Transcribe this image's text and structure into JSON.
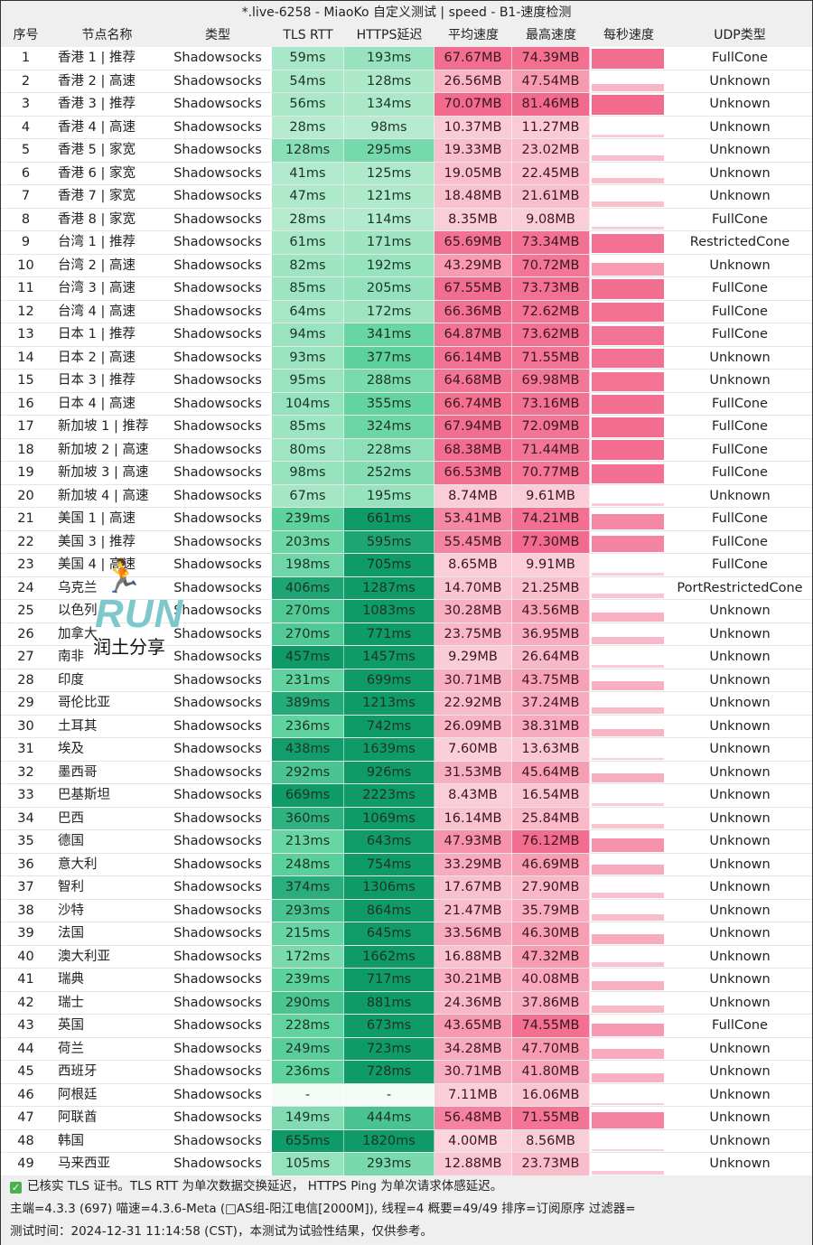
{
  "window": {
    "title": "*.live-6258 - MiaoKo 自定义测试 | speed - B1-速度检测"
  },
  "table": {
    "columns": [
      "序号",
      "节点名称",
      "类型",
      "TLS RTT",
      "HTTPS延迟",
      "平均速度",
      "最高速度",
      "每秒速度",
      "UDP类型"
    ],
    "rows": [
      {
        "idx": "1",
        "name": "香港 1 | 推荐",
        "type": "Shadowsocks",
        "tls": "59ms",
        "https": "193ms",
        "avg": "67.67MB",
        "max": "74.39MB",
        "udp": "FullCone"
      },
      {
        "idx": "2",
        "name": "香港 2 | 高速",
        "type": "Shadowsocks",
        "tls": "54ms",
        "https": "128ms",
        "avg": "26.56MB",
        "max": "47.54MB",
        "udp": "Unknown"
      },
      {
        "idx": "3",
        "name": "香港 3 | 推荐",
        "type": "Shadowsocks",
        "tls": "56ms",
        "https": "134ms",
        "avg": "70.07MB",
        "max": "81.46MB",
        "udp": "Unknown"
      },
      {
        "idx": "4",
        "name": "香港 4 | 高速",
        "type": "Shadowsocks",
        "tls": "28ms",
        "https": "98ms",
        "avg": "10.37MB",
        "max": "11.27MB",
        "udp": "Unknown"
      },
      {
        "idx": "5",
        "name": "香港 5 | 家宽",
        "type": "Shadowsocks",
        "tls": "128ms",
        "https": "295ms",
        "avg": "19.33MB",
        "max": "23.02MB",
        "udp": "Unknown"
      },
      {
        "idx": "6",
        "name": "香港 6 | 家宽",
        "type": "Shadowsocks",
        "tls": "41ms",
        "https": "125ms",
        "avg": "19.05MB",
        "max": "22.45MB",
        "udp": "Unknown"
      },
      {
        "idx": "7",
        "name": "香港 7 | 家宽",
        "type": "Shadowsocks",
        "tls": "47ms",
        "https": "121ms",
        "avg": "18.48MB",
        "max": "21.61MB",
        "udp": "Unknown"
      },
      {
        "idx": "8",
        "name": "香港 8 | 家宽",
        "type": "Shadowsocks",
        "tls": "28ms",
        "https": "114ms",
        "avg": "8.35MB",
        "max": "9.08MB",
        "udp": "FullCone"
      },
      {
        "idx": "9",
        "name": "台湾 1 | 推荐",
        "type": "Shadowsocks",
        "tls": "61ms",
        "https": "171ms",
        "avg": "65.69MB",
        "max": "73.34MB",
        "udp": "RestrictedCone"
      },
      {
        "idx": "10",
        "name": "台湾 2 | 高速",
        "type": "Shadowsocks",
        "tls": "82ms",
        "https": "192ms",
        "avg": "43.29MB",
        "max": "70.72MB",
        "udp": "Unknown"
      },
      {
        "idx": "11",
        "name": "台湾 3 | 高速",
        "type": "Shadowsocks",
        "tls": "85ms",
        "https": "205ms",
        "avg": "67.55MB",
        "max": "73.73MB",
        "udp": "FullCone"
      },
      {
        "idx": "12",
        "name": "台湾 4 | 高速",
        "type": "Shadowsocks",
        "tls": "64ms",
        "https": "172ms",
        "avg": "66.36MB",
        "max": "72.62MB",
        "udp": "FullCone"
      },
      {
        "idx": "13",
        "name": "日本 1 | 推荐",
        "type": "Shadowsocks",
        "tls": "94ms",
        "https": "341ms",
        "avg": "64.87MB",
        "max": "73.62MB",
        "udp": "FullCone"
      },
      {
        "idx": "14",
        "name": "日本 2 | 高速",
        "type": "Shadowsocks",
        "tls": "93ms",
        "https": "377ms",
        "avg": "66.14MB",
        "max": "71.55MB",
        "udp": "Unknown"
      },
      {
        "idx": "15",
        "name": "日本 3 | 推荐",
        "type": "Shadowsocks",
        "tls": "95ms",
        "https": "288ms",
        "avg": "64.68MB",
        "max": "69.98MB",
        "udp": "Unknown"
      },
      {
        "idx": "16",
        "name": "日本 4 | 高速",
        "type": "Shadowsocks",
        "tls": "104ms",
        "https": "355ms",
        "avg": "66.74MB",
        "max": "73.16MB",
        "udp": "FullCone"
      },
      {
        "idx": "17",
        "name": "新加坡 1 | 推荐",
        "type": "Shadowsocks",
        "tls": "85ms",
        "https": "324ms",
        "avg": "67.94MB",
        "max": "72.09MB",
        "udp": "FullCone"
      },
      {
        "idx": "18",
        "name": "新加坡 2 | 高速",
        "type": "Shadowsocks",
        "tls": "80ms",
        "https": "228ms",
        "avg": "68.38MB",
        "max": "71.44MB",
        "udp": "FullCone"
      },
      {
        "idx": "19",
        "name": "新加坡 3 | 高速",
        "type": "Shadowsocks",
        "tls": "98ms",
        "https": "252ms",
        "avg": "66.53MB",
        "max": "70.77MB",
        "udp": "FullCone"
      },
      {
        "idx": "20",
        "name": "新加坡 4 | 高速",
        "type": "Shadowsocks",
        "tls": "67ms",
        "https": "195ms",
        "avg": "8.74MB",
        "max": "9.61MB",
        "udp": "Unknown"
      },
      {
        "idx": "21",
        "name": "美国 1 | 高速",
        "type": "Shadowsocks",
        "tls": "239ms",
        "https": "661ms",
        "avg": "53.41MB",
        "max": "74.21MB",
        "udp": "FullCone"
      },
      {
        "idx": "22",
        "name": "美国 3 | 推荐",
        "type": "Shadowsocks",
        "tls": "203ms",
        "https": "595ms",
        "avg": "55.45MB",
        "max": "77.30MB",
        "udp": "FullCone"
      },
      {
        "idx": "23",
        "name": "美国 4 | 高速",
        "type": "Shadowsocks",
        "tls": "198ms",
        "https": "705ms",
        "avg": "8.65MB",
        "max": "9.91MB",
        "udp": "FullCone"
      },
      {
        "idx": "24",
        "name": "乌克兰",
        "type": "Shadowsocks",
        "tls": "406ms",
        "https": "1287ms",
        "avg": "14.70MB",
        "max": "21.25MB",
        "udp": "PortRestrictedCone"
      },
      {
        "idx": "25",
        "name": "以色列",
        "type": "Shadowsocks",
        "tls": "270ms",
        "https": "1083ms",
        "avg": "30.28MB",
        "max": "43.56MB",
        "udp": "Unknown"
      },
      {
        "idx": "26",
        "name": "加拿大",
        "type": "Shadowsocks",
        "tls": "270ms",
        "https": "771ms",
        "avg": "23.75MB",
        "max": "36.95MB",
        "udp": "Unknown"
      },
      {
        "idx": "27",
        "name": "南非",
        "type": "Shadowsocks",
        "tls": "457ms",
        "https": "1457ms",
        "avg": "9.29MB",
        "max": "26.64MB",
        "udp": "Unknown"
      },
      {
        "idx": "28",
        "name": "印度",
        "type": "Shadowsocks",
        "tls": "231ms",
        "https": "699ms",
        "avg": "30.71MB",
        "max": "43.75MB",
        "udp": "Unknown"
      },
      {
        "idx": "29",
        "name": "哥伦比亚",
        "type": "Shadowsocks",
        "tls": "389ms",
        "https": "1213ms",
        "avg": "22.92MB",
        "max": "37.24MB",
        "udp": "Unknown"
      },
      {
        "idx": "30",
        "name": "土耳其",
        "type": "Shadowsocks",
        "tls": "236ms",
        "https": "742ms",
        "avg": "26.09MB",
        "max": "38.31MB",
        "udp": "Unknown"
      },
      {
        "idx": "31",
        "name": "埃及",
        "type": "Shadowsocks",
        "tls": "438ms",
        "https": "1639ms",
        "avg": "7.60MB",
        "max": "13.63MB",
        "udp": "Unknown"
      },
      {
        "idx": "32",
        "name": "墨西哥",
        "type": "Shadowsocks",
        "tls": "292ms",
        "https": "926ms",
        "avg": "31.53MB",
        "max": "45.64MB",
        "udp": "Unknown"
      },
      {
        "idx": "33",
        "name": "巴基斯坦",
        "type": "Shadowsocks",
        "tls": "669ms",
        "https": "2223ms",
        "avg": "8.43MB",
        "max": "16.54MB",
        "udp": "Unknown"
      },
      {
        "idx": "34",
        "name": "巴西",
        "type": "Shadowsocks",
        "tls": "360ms",
        "https": "1069ms",
        "avg": "16.14MB",
        "max": "25.84MB",
        "udp": "Unknown"
      },
      {
        "idx": "35",
        "name": "德国",
        "type": "Shadowsocks",
        "tls": "213ms",
        "https": "643ms",
        "avg": "47.93MB",
        "max": "76.12MB",
        "udp": "Unknown"
      },
      {
        "idx": "36",
        "name": "意大利",
        "type": "Shadowsocks",
        "tls": "248ms",
        "https": "754ms",
        "avg": "33.29MB",
        "max": "46.69MB",
        "udp": "Unknown"
      },
      {
        "idx": "37",
        "name": "智利",
        "type": "Shadowsocks",
        "tls": "374ms",
        "https": "1306ms",
        "avg": "17.67MB",
        "max": "27.90MB",
        "udp": "Unknown"
      },
      {
        "idx": "38",
        "name": "沙特",
        "type": "Shadowsocks",
        "tls": "293ms",
        "https": "864ms",
        "avg": "21.47MB",
        "max": "35.79MB",
        "udp": "Unknown"
      },
      {
        "idx": "39",
        "name": "法国",
        "type": "Shadowsocks",
        "tls": "215ms",
        "https": "645ms",
        "avg": "33.56MB",
        "max": "46.30MB",
        "udp": "Unknown"
      },
      {
        "idx": "40",
        "name": "澳大利亚",
        "type": "Shadowsocks",
        "tls": "172ms",
        "https": "1662ms",
        "avg": "16.88MB",
        "max": "47.32MB",
        "udp": "Unknown"
      },
      {
        "idx": "41",
        "name": "瑞典",
        "type": "Shadowsocks",
        "tls": "239ms",
        "https": "717ms",
        "avg": "30.21MB",
        "max": "40.08MB",
        "udp": "Unknown"
      },
      {
        "idx": "42",
        "name": "瑞士",
        "type": "Shadowsocks",
        "tls": "290ms",
        "https": "881ms",
        "avg": "24.36MB",
        "max": "37.86MB",
        "udp": "Unknown"
      },
      {
        "idx": "43",
        "name": "英国",
        "type": "Shadowsocks",
        "tls": "228ms",
        "https": "673ms",
        "avg": "43.65MB",
        "max": "74.55MB",
        "udp": "FullCone"
      },
      {
        "idx": "44",
        "name": "荷兰",
        "type": "Shadowsocks",
        "tls": "249ms",
        "https": "723ms",
        "avg": "34.28MB",
        "max": "47.70MB",
        "udp": "Unknown"
      },
      {
        "idx": "45",
        "name": "西班牙",
        "type": "Shadowsocks",
        "tls": "236ms",
        "https": "728ms",
        "avg": "30.71MB",
        "max": "41.80MB",
        "udp": "Unknown"
      },
      {
        "idx": "46",
        "name": "阿根廷",
        "type": "Shadowsocks",
        "tls": "-",
        "https": "-",
        "avg": "7.11MB",
        "max": "16.06MB",
        "udp": "Unknown"
      },
      {
        "idx": "47",
        "name": "阿联酋",
        "type": "Shadowsocks",
        "tls": "149ms",
        "https": "444ms",
        "avg": "56.48MB",
        "max": "71.55MB",
        "udp": "Unknown"
      },
      {
        "idx": "48",
        "name": "韩国",
        "type": "Shadowsocks",
        "tls": "655ms",
        "https": "1820ms",
        "avg": "4.00MB",
        "max": "8.56MB",
        "udp": "Unknown"
      },
      {
        "idx": "49",
        "name": "马来西亚",
        "type": "Shadowsocks",
        "tls": "105ms",
        "https": "293ms",
        "avg": "12.88MB",
        "max": "23.73MB",
        "udp": "Unknown"
      }
    ]
  },
  "footer": {
    "line1": "已核实 TLS 证书。TLS RTT 为单次数据交换延迟， HTTPS Ping 为单次请求体感延迟。",
    "line2": "主端=4.3.3 (697) 喵速=4.3.6-Meta (□AS组-阳江电信[2000M]), 线程=4 概要=49/49 排序=订阅原序 过滤器=",
    "line3": "测试时间：2024-12-31 11:14:58 (CST)，本测试为试验性结果，仅供参考。"
  },
  "watermark": {
    "runner": "🏃",
    "brand": "RUN",
    "text": "润土分享"
  },
  "colors": {
    "header_bg": "#efefef",
    "green_light": "#b9ecd2",
    "green_mid": "#5ed29f",
    "green_dark": "#0f9a6a",
    "pink_light": "#fbd9e1",
    "pink_mid": "#f8a9bd",
    "pink_strong": "#f26a8d"
  }
}
